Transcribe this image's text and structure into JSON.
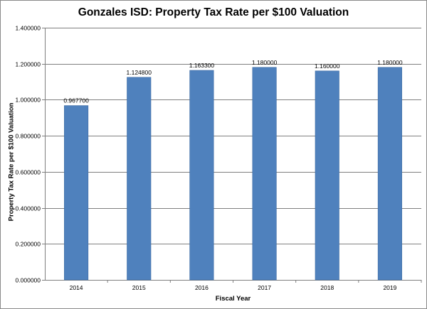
{
  "chart_data": {
    "type": "bar",
    "title": "Gonzales ISD: Property Tax Rate per $100 Valuation",
    "xlabel": "Fiscal Year",
    "ylabel": "Property Tax Rate per $100 Valuation",
    "categories": [
      "2014",
      "2015",
      "2016",
      "2017",
      "2018",
      "2019"
    ],
    "values": [
      0.9677,
      1.1248,
      1.1633,
      1.18,
      1.16,
      1.18
    ],
    "value_labels": [
      "0.967700",
      "1.124800",
      "1.163300",
      "1.180000",
      "1.160000",
      "1.180000"
    ],
    "ylim": [
      0,
      1.4
    ],
    "y_ticks": [
      0,
      0.2,
      0.4,
      0.6,
      0.8,
      1.0,
      1.2,
      1.4
    ],
    "y_tick_labels": [
      "0.000000",
      "0.200000",
      "0.400000",
      "0.600000",
      "0.800000",
      "1.000000",
      "1.200000",
      "1.400000"
    ],
    "grid": "horizontal",
    "legend": "none",
    "colors": {
      "bar": "#4f81bd",
      "bar_edge": "#3b6aa3",
      "grid": "#7f7f7f",
      "axis": "#7f7f7f"
    }
  }
}
